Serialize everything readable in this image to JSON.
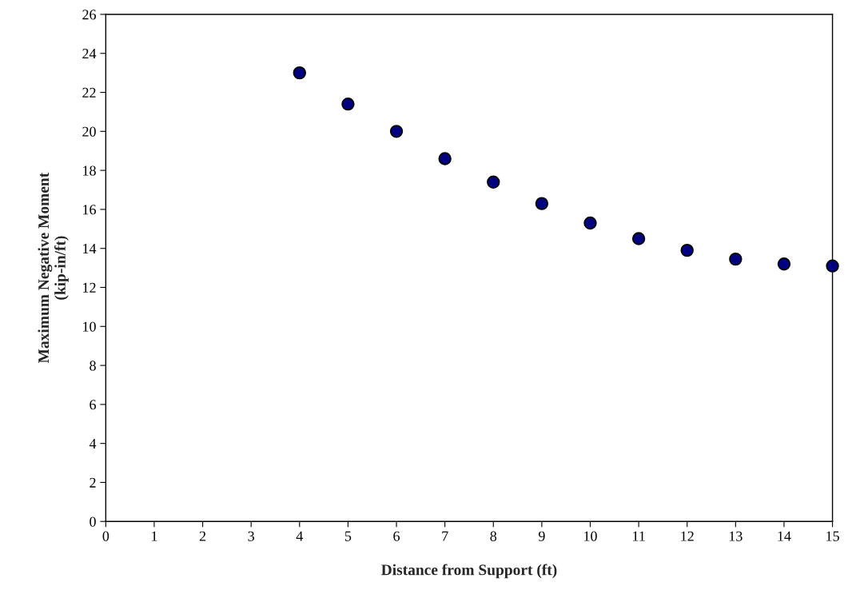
{
  "chart_data": {
    "type": "scatter",
    "xlabel": "Distance from Support (ft)",
    "ylabel": "Maximum Negative Moment\n(kip-in/ft)",
    "x": [
      4,
      5,
      6,
      7,
      8,
      9,
      10,
      11,
      12,
      13,
      14,
      15
    ],
    "series": [
      {
        "color": "#000080",
        "values": [
          23.0,
          21.4,
          20.0,
          18.6,
          17.4,
          16.3,
          15.3,
          14.5,
          13.9,
          13.45,
          13.2,
          13.1
        ]
      }
    ],
    "xlim": [
      0,
      15
    ],
    "ylim": [
      0,
      26
    ],
    "xticks": [
      0,
      1,
      2,
      3,
      4,
      5,
      6,
      7,
      8,
      9,
      10,
      11,
      12,
      13,
      14,
      15
    ],
    "yticks": [
      0,
      2,
      4,
      6,
      8,
      10,
      12,
      14,
      16,
      18,
      20,
      22,
      24,
      26
    ],
    "grid": false,
    "marker": "circle"
  }
}
